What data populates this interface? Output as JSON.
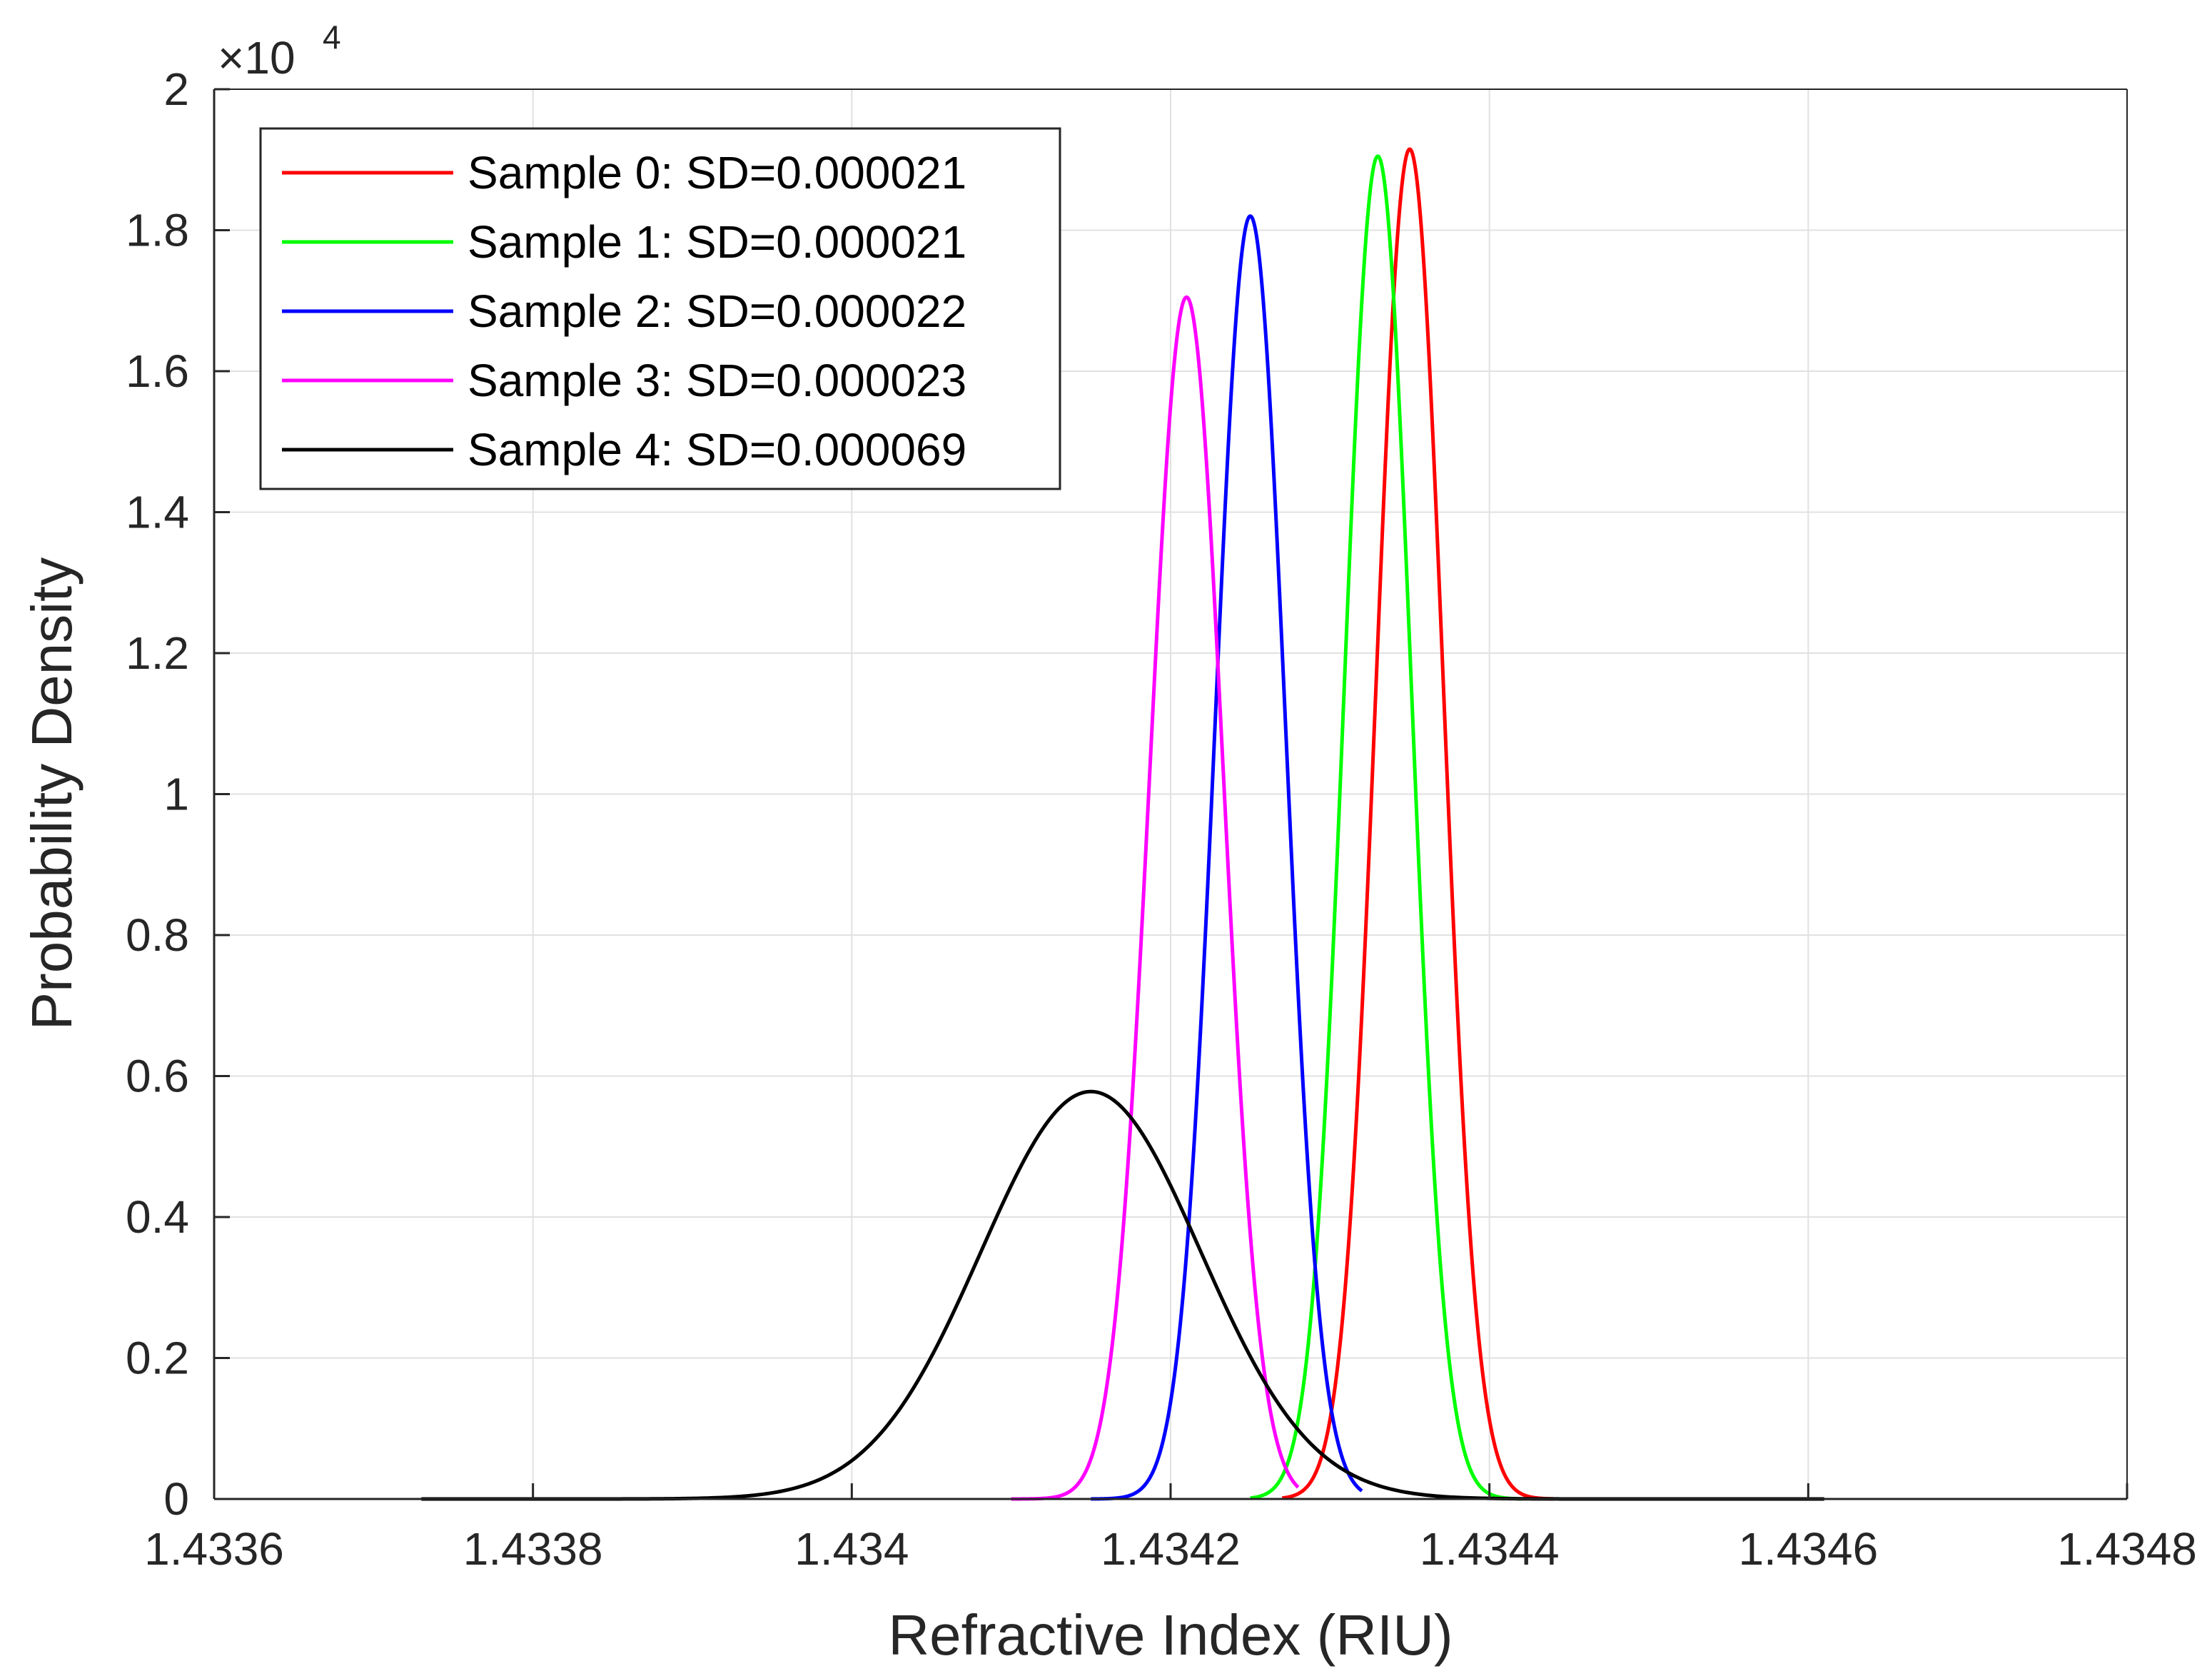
{
  "chart_data": {
    "type": "line",
    "xlabel": "Refractive Index (RIU)",
    "ylabel": "Probability Density",
    "xlim": [
      1.4336,
      1.4348
    ],
    "ylim": [
      0,
      20000
    ],
    "x_ticks": [
      1.4336,
      1.4338,
      1.434,
      1.4342,
      1.4344,
      1.4346,
      1.4348
    ],
    "x_tick_labels": [
      "1.4336",
      "1.4338",
      "1.434",
      "1.4342",
      "1.4344",
      "1.4346",
      "1.4348"
    ],
    "y_ticks": [
      0,
      2000,
      4000,
      6000,
      8000,
      10000,
      12000,
      14000,
      16000,
      18000,
      20000
    ],
    "y_tick_labels": [
      "0",
      "0.2",
      "0.4",
      "0.6",
      "0.8",
      "1",
      "1.2",
      "1.4",
      "1.6",
      "1.8",
      "2"
    ],
    "y_exponent_label": {
      "base": "×10",
      "power": "4"
    },
    "grid": true,
    "legend_position": "top-left",
    "series": [
      {
        "name": "Sample 0: SD=0.000021",
        "color": "#ff0000",
        "mean": 1.43435,
        "sd": 2.1e-05,
        "peak": 19150,
        "x_range": [
          1.43427,
          1.43444
        ]
      },
      {
        "name": "Sample 1: SD=0.000021",
        "color": "#00ff00",
        "mean": 1.43433,
        "sd": 2.1e-05,
        "peak": 19050,
        "x_range": [
          1.43425,
          1.43442
        ]
      },
      {
        "name": "Sample 2: SD=0.000022",
        "color": "#0000ff",
        "mean": 1.43425,
        "sd": 2.2e-05,
        "peak": 18200,
        "x_range": [
          1.43415,
          1.43432
        ]
      },
      {
        "name": "Sample 3: SD=0.000023",
        "color": "#ff00ff",
        "mean": 1.43421,
        "sd": 2.3e-05,
        "peak": 17050,
        "x_range": [
          1.4341,
          1.43428
        ]
      },
      {
        "name": "Sample 4: SD=0.000069",
        "color": "#000000",
        "mean": 1.43415,
        "sd": 6.9e-05,
        "peak": 5780,
        "x_range": [
          1.43373,
          1.43461
        ]
      }
    ]
  }
}
